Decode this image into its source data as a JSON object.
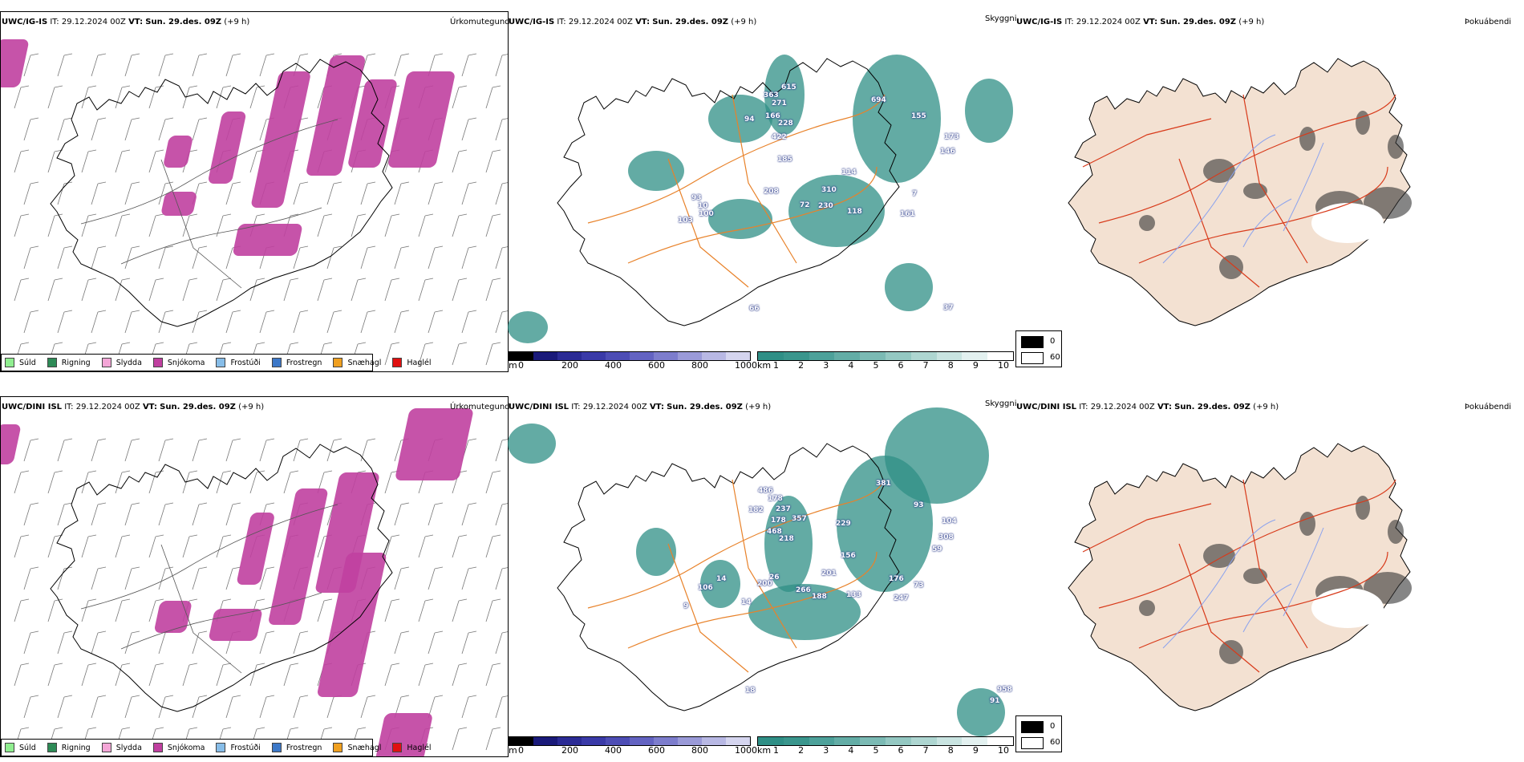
{
  "rows": [
    {
      "model": "UWC/IG-IS",
      "precip": {
        "name": "Úrkomutegund"
      },
      "visibility": {
        "name": "Skyggni",
        "labels": [
          [
            "363",
            958,
            120
          ],
          [
            "615",
            980,
            110
          ],
          [
            "271",
            968,
            130
          ],
          [
            "166",
            960,
            146
          ],
          [
            "228",
            976,
            155
          ],
          [
            "94",
            934,
            150
          ],
          [
            "422",
            968,
            172
          ],
          [
            "185",
            975,
            200
          ],
          [
            "694",
            1092,
            126
          ],
          [
            "155",
            1142,
            146
          ],
          [
            "173",
            1183,
            172
          ],
          [
            "146",
            1178,
            190
          ],
          [
            "114",
            1055,
            216
          ],
          [
            "310",
            1030,
            238
          ],
          [
            "208",
            958,
            240
          ],
          [
            "93",
            868,
            248
          ],
          [
            "10",
            876,
            258
          ],
          [
            "100",
            877,
            268
          ],
          [
            "103",
            851,
            276
          ],
          [
            "230",
            1026,
            258
          ],
          [
            "118",
            1062,
            265
          ],
          [
            "72",
            1003,
            257
          ],
          [
            "161",
            1128,
            268
          ],
          [
            "7",
            1143,
            243
          ],
          [
            "37",
            1182,
            385
          ],
          [
            "66",
            940,
            386
          ]
        ]
      },
      "fog": {
        "name": "Þokuábendi"
      }
    },
    {
      "model": "UWC/DINI ISL",
      "precip": {
        "name": "Úrkomutegund"
      },
      "visibility": {
        "name": "Skyggni",
        "labels": [
          [
            "486",
            951,
            613
          ],
          [
            "178",
            963,
            623
          ],
          [
            "182",
            939,
            637
          ],
          [
            "237",
            973,
            636
          ],
          [
            "178",
            967,
            650
          ],
          [
            "357",
            993,
            648
          ],
          [
            "468",
            962,
            664
          ],
          [
            "218",
            977,
            673
          ],
          [
            "229",
            1048,
            654
          ],
          [
            "381",
            1098,
            604
          ],
          [
            "93",
            1145,
            631
          ],
          [
            "104",
            1180,
            651
          ],
          [
            "308",
            1176,
            671
          ],
          [
            "59",
            1168,
            686
          ],
          [
            "156",
            1054,
            694
          ],
          [
            "201",
            1030,
            716
          ],
          [
            "176",
            1114,
            723
          ],
          [
            "73",
            1145,
            731
          ],
          [
            "106",
            876,
            734
          ],
          [
            "14",
            899,
            723
          ],
          [
            "200",
            950,
            729
          ],
          [
            "26",
            965,
            721
          ],
          [
            "266",
            998,
            737
          ],
          [
            "188",
            1018,
            745
          ],
          [
            "133",
            1061,
            743
          ],
          [
            "247",
            1120,
            747
          ],
          [
            "9",
            858,
            757
          ],
          [
            "14",
            930,
            752
          ],
          [
            "18",
            935,
            862
          ],
          [
            "958",
            1249,
            861
          ],
          [
            "91",
            1240,
            875
          ]
        ]
      },
      "fog": {
        "name": "Þokuábendi"
      }
    }
  ],
  "init_time_label": "IT:",
  "init_time": "29.12.2024 00Z",
  "valid_time_label": "VT:",
  "valid_time": "Sun. 29.des. 09Z",
  "lead": "(+9 h)",
  "precip_legend": [
    {
      "label": "Súld",
      "color": "#90ee90"
    },
    {
      "label": "Rigning",
      "color": "#2e8b57"
    },
    {
      "label": "Slydda",
      "color": "#f4a6d7"
    },
    {
      "label": "Snjókoma",
      "color": "#c040a0"
    },
    {
      "label": "Frostúði",
      "color": "#87bde8"
    },
    {
      "label": "Frostregn",
      "color": "#3c78c8"
    },
    {
      "label": "Snæhagl",
      "color": "#f0a020"
    },
    {
      "label": "Haglél",
      "color": "#e01010"
    }
  ],
  "height_scale": {
    "unit": "m",
    "ticks": [
      "0",
      "200",
      "400",
      "600",
      "800",
      "1000"
    ]
  },
  "vis_scale": {
    "unit": "km",
    "ticks": [
      "1",
      "2",
      "3",
      "4",
      "5",
      "6",
      "7",
      "8",
      "9",
      "10"
    ]
  },
  "fog_scale": {
    "ticks": [
      "0",
      "60"
    ]
  },
  "colors": {
    "snow": "#c040a0",
    "vis": "#2f8f86",
    "land": "#f3e1d2",
    "roads_orange": "#e8822a",
    "roads_red": "#d83a1a",
    "rivers": "#8aa2ee"
  }
}
